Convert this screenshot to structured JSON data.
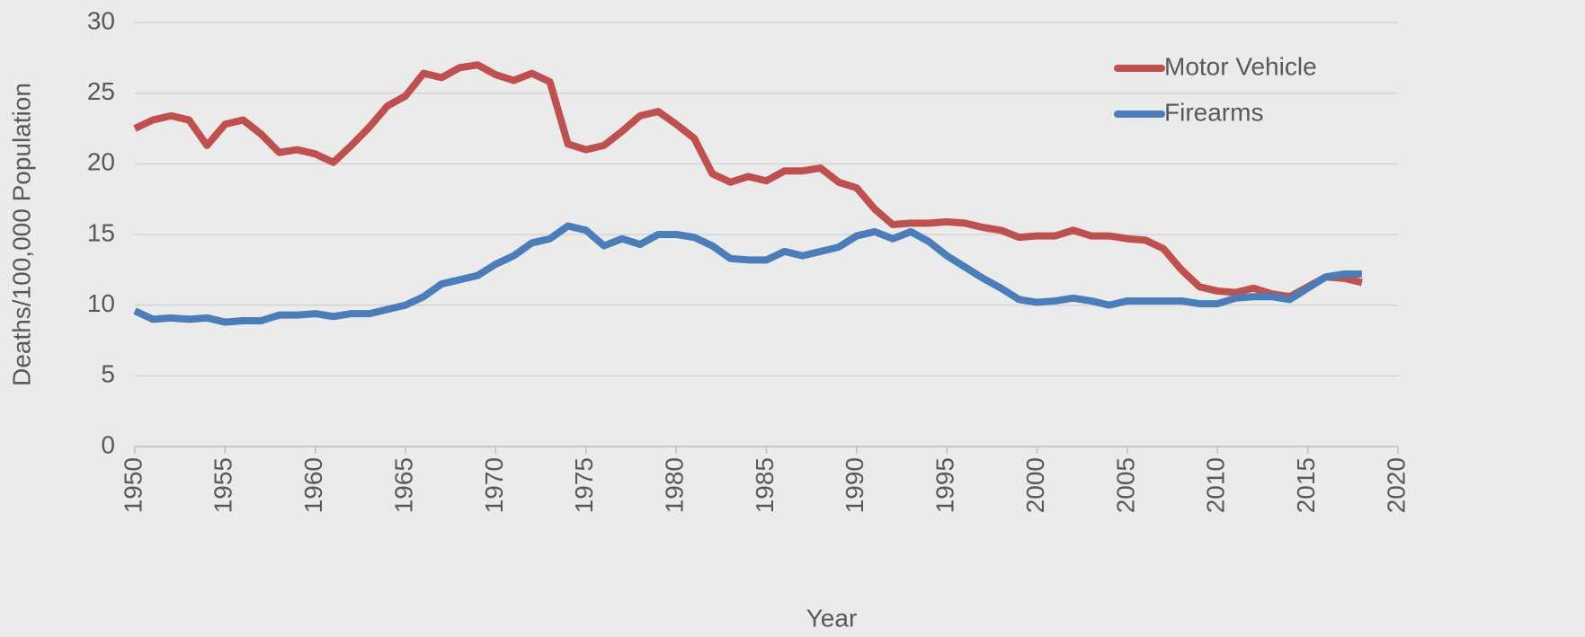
{
  "chart_data": {
    "type": "line",
    "xlabel": "Year",
    "ylabel": "Deaths/100,000 Population",
    "x": [
      1950,
      1951,
      1952,
      1953,
      1954,
      1955,
      1956,
      1957,
      1958,
      1959,
      1960,
      1961,
      1962,
      1963,
      1964,
      1965,
      1966,
      1967,
      1968,
      1969,
      1970,
      1971,
      1972,
      1973,
      1974,
      1975,
      1976,
      1977,
      1978,
      1979,
      1980,
      1981,
      1982,
      1983,
      1984,
      1985,
      1986,
      1987,
      1988,
      1989,
      1990,
      1991,
      1992,
      1993,
      1994,
      1995,
      1996,
      1997,
      1998,
      1999,
      2000,
      2001,
      2002,
      2003,
      2004,
      2005,
      2006,
      2007,
      2008,
      2009,
      2010,
      2011,
      2012,
      2013,
      2014,
      2015,
      2016,
      2017,
      2018
    ],
    "series": [
      {
        "name": "Motor Vehicle",
        "color": "#c0504d",
        "values": [
          22.5,
          23.1,
          23.4,
          23.1,
          21.3,
          22.8,
          23.1,
          22.1,
          20.8,
          21.0,
          20.7,
          20.1,
          21.3,
          22.6,
          24.1,
          24.8,
          26.4,
          26.1,
          26.8,
          27.0,
          26.3,
          25.9,
          26.4,
          25.8,
          21.4,
          21.0,
          21.3,
          22.3,
          23.4,
          23.7,
          22.8,
          21.8,
          19.3,
          18.7,
          19.1,
          18.8,
          19.5,
          19.5,
          19.7,
          18.7,
          18.3,
          16.8,
          15.7,
          15.8,
          15.8,
          15.9,
          15.8,
          15.5,
          15.3,
          14.8,
          14.9,
          14.9,
          15.3,
          14.9,
          14.9,
          14.7,
          14.6,
          14.0,
          12.5,
          11.3,
          11.0,
          10.9,
          11.2,
          10.8,
          10.6,
          11.3,
          12.0,
          11.9,
          11.6
        ]
      },
      {
        "name": "Firearms",
        "color": "#4a7ebb",
        "values": [
          9.6,
          9.0,
          9.1,
          9.0,
          9.1,
          8.8,
          8.9,
          8.9,
          9.3,
          9.3,
          9.4,
          9.2,
          9.4,
          9.4,
          9.7,
          10.0,
          10.6,
          11.5,
          11.8,
          12.1,
          12.9,
          13.5,
          14.4,
          14.7,
          15.6,
          15.3,
          14.2,
          14.7,
          14.3,
          15.0,
          15.0,
          14.8,
          14.2,
          13.3,
          13.2,
          13.2,
          13.8,
          13.5,
          13.8,
          14.1,
          14.9,
          15.2,
          14.7,
          15.2,
          14.5,
          13.5,
          12.7,
          11.9,
          11.2,
          10.4,
          10.2,
          10.3,
          10.5,
          10.3,
          10.0,
          10.3,
          10.3,
          10.3,
          10.3,
          10.1,
          10.1,
          10.5,
          10.6,
          10.6,
          10.4,
          11.2,
          12.0,
          12.2,
          12.2
        ]
      }
    ],
    "xlim": [
      1950,
      2020
    ],
    "xticks": [
      1950,
      1955,
      1960,
      1965,
      1970,
      1975,
      1980,
      1985,
      1990,
      1995,
      2000,
      2005,
      2010,
      2015,
      2020
    ],
    "ylim": [
      0,
      30
    ],
    "yticks": [
      0,
      5,
      10,
      15,
      20,
      25,
      30
    ],
    "grid": true,
    "legend": "upper right"
  }
}
